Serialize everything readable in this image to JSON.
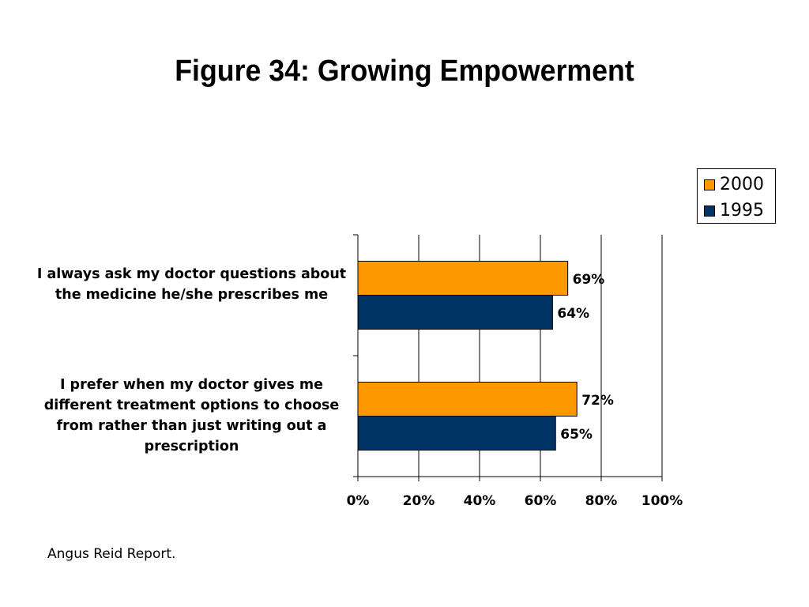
{
  "title": "Figure 34: Growing Empowerment",
  "source": "Angus Reid Report.",
  "colors": {
    "2000": "#FF9900",
    "1995": "#003366"
  },
  "chart_data": {
    "type": "bar",
    "orientation": "horizontal",
    "title": "Figure 34: Growing Empowerment",
    "categories": [
      "I always ask my doctor questions about the medicine he/she prescribes me",
      "I prefer when my doctor gives me different treatment options to choose from rather than just writing out a prescription"
    ],
    "series": [
      {
        "name": "2000",
        "color": "#FF9900",
        "values": [
          69,
          72
        ],
        "labels": [
          "69%",
          "72%"
        ]
      },
      {
        "name": "1995",
        "color": "#003366",
        "values": [
          64,
          65
        ],
        "labels": [
          "64%",
          "65%"
        ]
      }
    ],
    "xlim": [
      0,
      100
    ],
    "xticks": [
      "0%",
      "20%",
      "40%",
      "60%",
      "80%",
      "100%"
    ],
    "grid": true,
    "legend": "top-right"
  }
}
